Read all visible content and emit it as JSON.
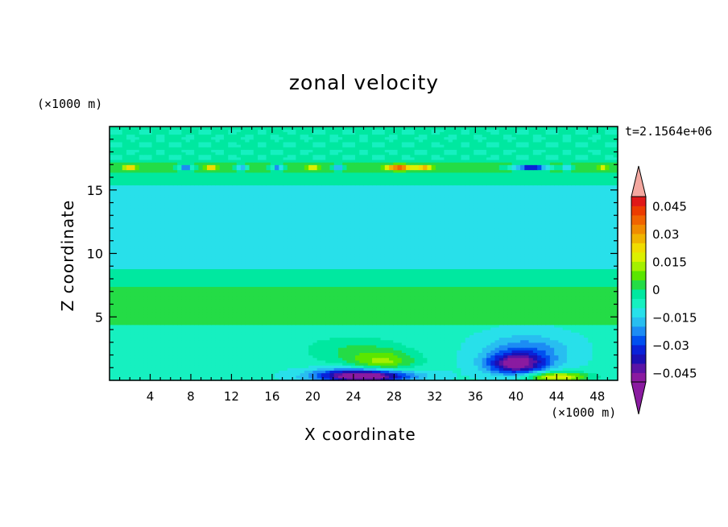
{
  "header": {
    "title": "zonal velocity",
    "time_label": "t=2.1564e+06"
  },
  "axes": {
    "x_unit": "(×1000 m)",
    "y_unit": "(×1000 m)"
  },
  "chart_data": {
    "type": "heatmap",
    "title": "zonal velocity",
    "xlabel": "X coordinate",
    "ylabel": "Z coordinate",
    "x_unit_label": "(×1000 m)",
    "y_unit_label": "(×1000 m)",
    "annotation": "t=2.1564e+06",
    "xlim": [
      0,
      50
    ],
    "ylim": [
      0,
      20
    ],
    "x_ticks": [
      4,
      8,
      12,
      16,
      20,
      24,
      28,
      32,
      36,
      40,
      44,
      48
    ],
    "y_ticks": [
      5,
      10,
      15
    ],
    "colorbar": {
      "levels": [
        -0.05,
        -0.045,
        -0.04,
        -0.035,
        -0.03,
        -0.025,
        -0.02,
        -0.015,
        -0.01,
        -0.005,
        0,
        0.005,
        0.01,
        0.015,
        0.02,
        0.025,
        0.03,
        0.035,
        0.04,
        0.045,
        0.05
      ],
      "colors": [
        "#8a1ba0",
        "#5a14a6",
        "#1c10b4",
        "#0a22d8",
        "#0050f0",
        "#1c8cf4",
        "#28bef0",
        "#28e0ea",
        "#16f0c0",
        "#00e8a0",
        "#24dc46",
        "#5ae600",
        "#a4f000",
        "#dcf000",
        "#f0dc00",
        "#f0b400",
        "#f08c00",
        "#f06400",
        "#ec3c00",
        "#e01818"
      ],
      "under_color": "#8a1ba0",
      "over_color": "#f4a8a0",
      "tick_labels": [
        "0.045",
        "0.03",
        "0.015",
        "0",
        "−0.015",
        "−0.03",
        "−0.045"
      ],
      "tick_values": [
        0.045,
        0.03,
        0.015,
        0,
        -0.015,
        -0.03,
        -0.045
      ]
    },
    "features": [
      {
        "x": 25,
        "z": 0.4,
        "amp": -0.05,
        "sx": 4.5,
        "sz": 0.55
      },
      {
        "x": 27,
        "z": 1.4,
        "amp": 0.018,
        "sx": 3.2,
        "sz": 0.9
      },
      {
        "x": 24,
        "z": 2.4,
        "amp": 0.009,
        "sx": 5,
        "sz": 1.2
      },
      {
        "x": 40,
        "z": 1.3,
        "amp": -0.035,
        "sx": 2.8,
        "sz": 0.8
      },
      {
        "x": 41,
        "z": 2.3,
        "amp": -0.016,
        "sx": 4,
        "sz": 1.3
      },
      {
        "x": 44,
        "z": 0.3,
        "amp": 0.03,
        "sx": 3,
        "sz": 0.4
      },
      {
        "x": 48,
        "z": 12,
        "amp": -0.004,
        "sx": 4,
        "sz": 1.5
      },
      {
        "x": 28.5,
        "z": 16.8,
        "amp": 0.045,
        "sx": 1.3,
        "sz": 0.2
      },
      {
        "x": 41.5,
        "z": 16.8,
        "amp": -0.045,
        "sx": 1.6,
        "sz": 0.2
      },
      {
        "x": 2,
        "z": 16.8,
        "amp": 0.03,
        "sx": 0.7,
        "sz": 0.2
      },
      {
        "x": 7.5,
        "z": 16.8,
        "amp": -0.03,
        "sx": 0.7,
        "sz": 0.2
      },
      {
        "x": 10,
        "z": 16.8,
        "amp": 0.03,
        "sx": 0.6,
        "sz": 0.2
      },
      {
        "x": 13,
        "z": 16.8,
        "amp": -0.025,
        "sx": 0.5,
        "sz": 0.2
      },
      {
        "x": 16.5,
        "z": 16.8,
        "amp": -0.03,
        "sx": 0.5,
        "sz": 0.2
      },
      {
        "x": 20,
        "z": 16.8,
        "amp": 0.025,
        "sx": 0.5,
        "sz": 0.2
      },
      {
        "x": 22.5,
        "z": 16.8,
        "amp": -0.025,
        "sx": 0.5,
        "sz": 0.2
      },
      {
        "x": 31,
        "z": 16.8,
        "amp": 0.03,
        "sx": 0.8,
        "sz": 0.2
      },
      {
        "x": 45,
        "z": 16.8,
        "amp": -0.02,
        "sx": 0.5,
        "sz": 0.2
      },
      {
        "x": 48.5,
        "z": 16.8,
        "amp": 0.02,
        "sx": 0.5,
        "sz": 0.2
      }
    ]
  }
}
